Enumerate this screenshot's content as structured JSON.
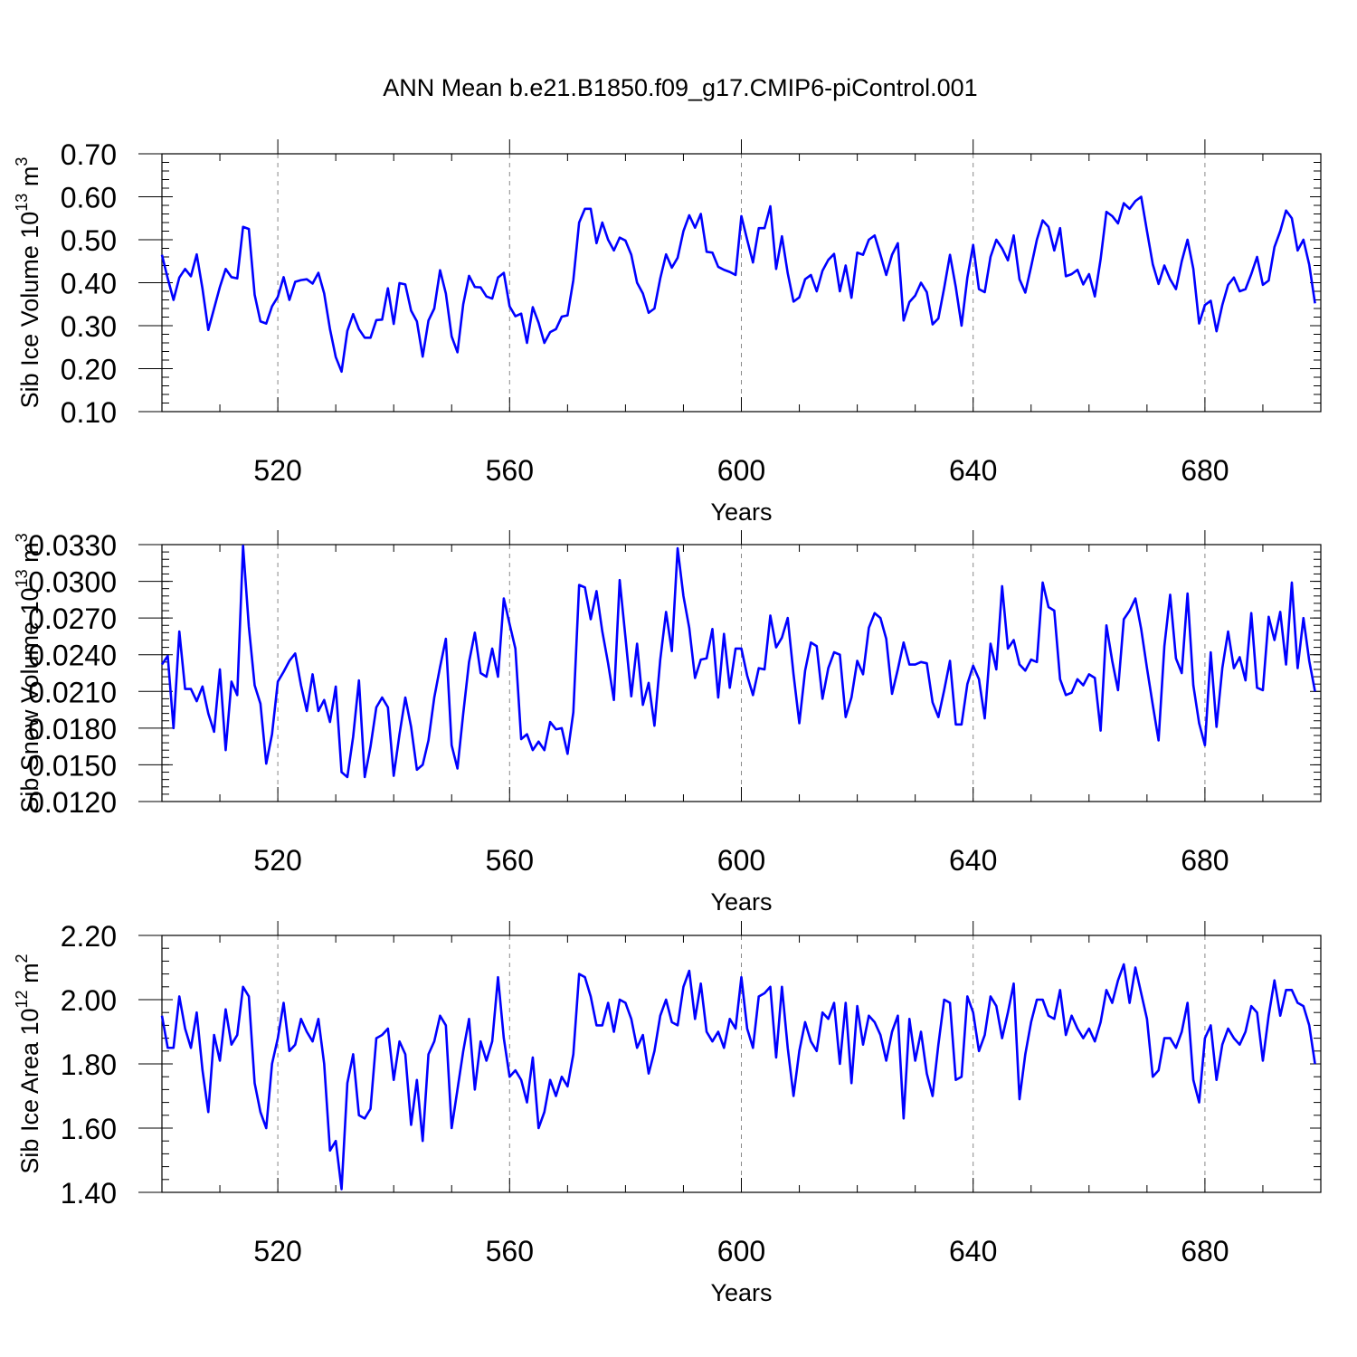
{
  "figure_title": "ANN Mean b.e21.B1850.f09_g17.CMIP6-piControl.001",
  "chart_data": [
    {
      "type": "line",
      "title": "",
      "ylabel": {
        "base": "Sib Ice Volume 10",
        "exp": "13",
        "unit": " m",
        "unit_exp": "3"
      },
      "xlabel": "Years",
      "xlim": [
        500,
        700
      ],
      "ylim": [
        0.1,
        0.7
      ],
      "x_ticks": [
        520,
        560,
        600,
        640,
        680
      ],
      "y_ticks": [
        "0.10",
        "0.20",
        "0.30",
        "0.40",
        "0.50",
        "0.60",
        "0.70"
      ],
      "grid_x": true,
      "color": "#0000ff",
      "x_start": 500,
      "values": [
        0.465,
        0.41,
        0.36,
        0.412,
        0.432,
        0.415,
        0.466,
        0.386,
        0.29,
        0.34,
        0.39,
        0.432,
        0.413,
        0.41,
        0.53,
        0.525,
        0.372,
        0.31,
        0.305,
        0.345,
        0.367,
        0.413,
        0.36,
        0.402,
        0.406,
        0.408,
        0.398,
        0.423,
        0.375,
        0.292,
        0.227,
        0.193,
        0.288,
        0.327,
        0.292,
        0.272,
        0.272,
        0.313,
        0.314,
        0.387,
        0.304,
        0.399,
        0.396,
        0.335,
        0.31,
        0.228,
        0.312,
        0.34,
        0.429,
        0.375,
        0.275,
        0.238,
        0.35,
        0.416,
        0.39,
        0.389,
        0.368,
        0.363,
        0.412,
        0.423,
        0.345,
        0.322,
        0.328,
        0.26,
        0.343,
        0.307,
        0.26,
        0.285,
        0.292,
        0.321,
        0.324,
        0.406,
        0.54,
        0.572,
        0.572,
        0.492,
        0.54,
        0.5,
        0.475,
        0.505,
        0.498,
        0.465,
        0.4,
        0.375,
        0.33,
        0.34,
        0.41,
        0.466,
        0.435,
        0.458,
        0.52,
        0.557,
        0.528,
        0.56,
        0.472,
        0.47,
        0.437,
        0.43,
        0.425,
        0.418,
        0.555,
        0.5,
        0.447,
        0.527,
        0.527,
        0.578,
        0.432,
        0.508,
        0.422,
        0.356,
        0.366,
        0.408,
        0.418,
        0.38,
        0.428,
        0.453,
        0.467,
        0.38,
        0.44,
        0.365,
        0.47,
        0.465,
        0.5,
        0.51,
        0.465,
        0.418,
        0.465,
        0.492,
        0.312,
        0.355,
        0.37,
        0.4,
        0.378,
        0.303,
        0.317,
        0.388,
        0.465,
        0.39,
        0.3,
        0.412,
        0.488,
        0.385,
        0.378,
        0.46,
        0.5,
        0.48,
        0.452,
        0.51,
        0.408,
        0.377,
        0.437,
        0.5,
        0.545,
        0.53,
        0.475,
        0.527,
        0.415,
        0.42,
        0.43,
        0.396,
        0.42,
        0.368,
        0.455,
        0.565,
        0.555,
        0.538,
        0.585,
        0.572,
        0.59,
        0.6,
        0.52,
        0.443,
        0.397,
        0.44,
        0.408,
        0.385,
        0.45,
        0.5,
        0.432,
        0.305,
        0.348,
        0.358,
        0.287,
        0.348,
        0.395,
        0.412,
        0.38,
        0.385,
        0.42,
        0.46,
        0.395,
        0.405,
        0.483,
        0.52,
        0.568,
        0.55,
        0.475,
        0.5,
        0.442,
        0.352
      ]
    },
    {
      "type": "line",
      "title": "",
      "ylabel": {
        "base": "Sib Snow Volume 10",
        "exp": "13",
        "unit": " m",
        "unit_exp": "3"
      },
      "xlabel": "Years",
      "xlim": [
        500,
        700
      ],
      "ylim": [
        0.012,
        0.033
      ],
      "x_ticks": [
        520,
        560,
        600,
        640,
        680
      ],
      "y_ticks": [
        "0.0120",
        "0.0150",
        "0.0180",
        "0.0210",
        "0.0240",
        "0.0270",
        "0.0300",
        "0.0330"
      ],
      "grid_x": true,
      "color": "#0000ff",
      "x_start": 500,
      "values": [
        0.0232,
        0.0239,
        0.018,
        0.0259,
        0.0212,
        0.0212,
        0.0202,
        0.0214,
        0.0192,
        0.0177,
        0.0228,
        0.0162,
        0.0218,
        0.0207,
        0.0329,
        0.0263,
        0.0215,
        0.02,
        0.0151,
        0.0175,
        0.0218,
        0.0226,
        0.0235,
        0.0241,
        0.0215,
        0.0194,
        0.0224,
        0.0194,
        0.0203,
        0.0185,
        0.0214,
        0.0144,
        0.014,
        0.0173,
        0.0219,
        0.014,
        0.0165,
        0.0197,
        0.0205,
        0.0197,
        0.0141,
        0.0175,
        0.0205,
        0.0181,
        0.0146,
        0.015,
        0.017,
        0.0205,
        0.023,
        0.0253,
        0.0166,
        0.0147,
        0.0192,
        0.0234,
        0.0258,
        0.0225,
        0.0222,
        0.0245,
        0.0222,
        0.0286,
        0.0265,
        0.0245,
        0.0171,
        0.0175,
        0.0162,
        0.0169,
        0.0162,
        0.0185,
        0.0179,
        0.018,
        0.0159,
        0.0193,
        0.0297,
        0.0295,
        0.0269,
        0.0292,
        0.0259,
        0.0233,
        0.0203,
        0.0301,
        0.0254,
        0.0206,
        0.0249,
        0.0199,
        0.0217,
        0.0182,
        0.0236,
        0.0275,
        0.0243,
        0.0327,
        0.0288,
        0.0262,
        0.0221,
        0.0236,
        0.0237,
        0.0261,
        0.0205,
        0.0257,
        0.0213,
        0.0245,
        0.0245,
        0.0223,
        0.0207,
        0.0229,
        0.0228,
        0.0272,
        0.0246,
        0.0254,
        0.027,
        0.0224,
        0.0184,
        0.0227,
        0.025,
        0.0247,
        0.0204,
        0.0229,
        0.0242,
        0.024,
        0.0189,
        0.0205,
        0.0235,
        0.0224,
        0.0262,
        0.0274,
        0.027,
        0.0253,
        0.0208,
        0.0228,
        0.025,
        0.0232,
        0.0232,
        0.0234,
        0.0233,
        0.0201,
        0.0189,
        0.0211,
        0.0235,
        0.0183,
        0.0183,
        0.0216,
        0.0231,
        0.022,
        0.0188,
        0.0249,
        0.0228,
        0.0296,
        0.0245,
        0.0252,
        0.0232,
        0.0227,
        0.0236,
        0.0234,
        0.0299,
        0.0279,
        0.0276,
        0.022,
        0.0207,
        0.0209,
        0.022,
        0.0215,
        0.0224,
        0.0221,
        0.0178,
        0.0264,
        0.0235,
        0.0211,
        0.0269,
        0.0276,
        0.0286,
        0.0261,
        0.0229,
        0.0199,
        0.017,
        0.0247,
        0.0289,
        0.0237,
        0.0225,
        0.029,
        0.0215,
        0.0184,
        0.0166,
        0.0242,
        0.0181,
        0.0229,
        0.0259,
        0.0229,
        0.0238,
        0.0219,
        0.0274,
        0.0213,
        0.0211,
        0.0271,
        0.0252,
        0.0275,
        0.0232,
        0.0299,
        0.0229,
        0.027,
        0.0235,
        0.021
      ]
    },
    {
      "type": "line",
      "title": "",
      "ylabel": {
        "base": "Sib Ice Area 10",
        "exp": "12",
        "unit": " m",
        "unit_exp": "2"
      },
      "xlabel": "Years",
      "xlim": [
        500,
        700
      ],
      "ylim": [
        1.4,
        2.2
      ],
      "x_ticks": [
        520,
        560,
        600,
        640,
        680
      ],
      "y_ticks": [
        "1.40",
        "1.60",
        "1.80",
        "2.00",
        "2.20"
      ],
      "grid_x": true,
      "color": "#0000ff",
      "x_start": 500,
      "values": [
        1.95,
        1.85,
        1.85,
        2.01,
        1.91,
        1.85,
        1.96,
        1.78,
        1.65,
        1.89,
        1.81,
        1.97,
        1.86,
        1.89,
        2.04,
        2.01,
        1.74,
        1.65,
        1.6,
        1.8,
        1.88,
        1.99,
        1.84,
        1.86,
        1.94,
        1.9,
        1.87,
        1.94,
        1.8,
        1.53,
        1.56,
        1.41,
        1.74,
        1.83,
        1.64,
        1.63,
        1.66,
        1.88,
        1.89,
        1.91,
        1.75,
        1.87,
        1.83,
        1.61,
        1.75,
        1.56,
        1.83,
        1.87,
        1.95,
        1.92,
        1.6,
        1.72,
        1.84,
        1.94,
        1.72,
        1.87,
        1.81,
        1.87,
        2.07,
        1.88,
        1.76,
        1.78,
        1.75,
        1.68,
        1.82,
        1.6,
        1.65,
        1.75,
        1.7,
        1.76,
        1.73,
        1.83,
        2.08,
        2.07,
        2.01,
        1.92,
        1.92,
        1.99,
        1.9,
        2.0,
        1.99,
        1.94,
        1.85,
        1.89,
        1.77,
        1.84,
        1.95,
        2.0,
        1.93,
        1.92,
        2.04,
        2.09,
        1.94,
        2.05,
        1.9,
        1.87,
        1.9,
        1.85,
        1.94,
        1.91,
        2.07,
        1.91,
        1.85,
        2.01,
        2.02,
        2.04,
        1.82,
        2.04,
        1.85,
        1.7,
        1.84,
        1.93,
        1.87,
        1.84,
        1.96,
        1.94,
        1.99,
        1.8,
        1.99,
        1.74,
        1.98,
        1.86,
        1.95,
        1.93,
        1.89,
        1.81,
        1.9,
        1.95,
        1.63,
        1.94,
        1.81,
        1.9,
        1.77,
        1.7,
        1.86,
        2.0,
        1.99,
        1.75,
        1.76,
        2.01,
        1.96,
        1.84,
        1.89,
        2.01,
        1.98,
        1.88,
        1.96,
        2.05,
        1.69,
        1.83,
        1.93,
        2.0,
        2.0,
        1.95,
        1.94,
        2.03,
        1.89,
        1.95,
        1.91,
        1.88,
        1.91,
        1.87,
        1.93,
        2.03,
        1.99,
        2.06,
        2.11,
        1.99,
        2.1,
        2.02,
        1.94,
        1.76,
        1.78,
        1.88,
        1.88,
        1.85,
        1.9,
        1.99,
        1.75,
        1.68,
        1.88,
        1.92,
        1.75,
        1.86,
        1.91,
        1.88,
        1.86,
        1.9,
        1.98,
        1.96,
        1.81,
        1.95,
        2.06,
        1.95,
        2.03,
        2.03,
        1.99,
        1.98,
        1.92,
        1.8
      ]
    }
  ]
}
